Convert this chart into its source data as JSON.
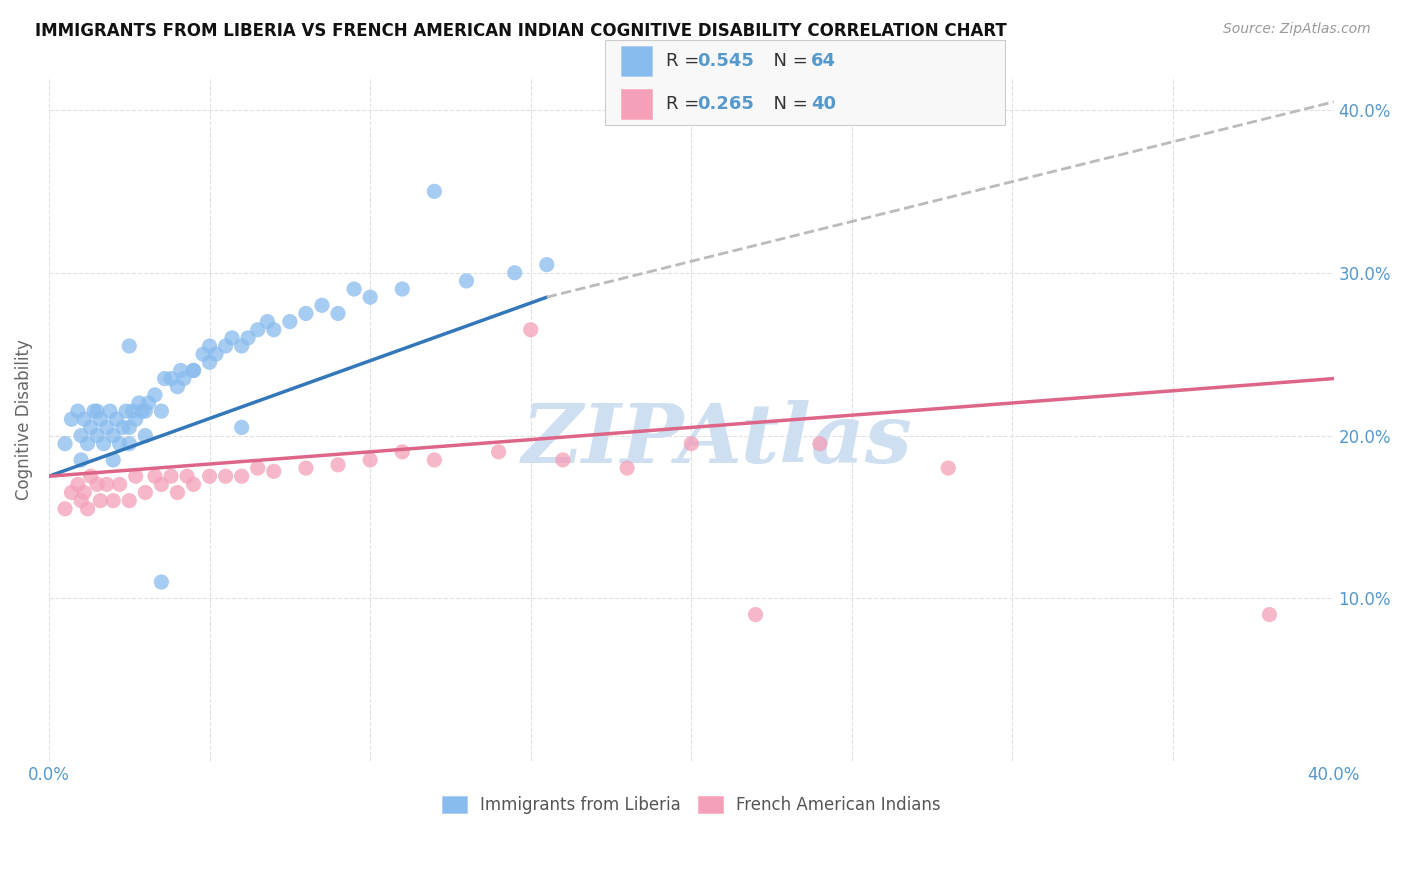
{
  "title": "IMMIGRANTS FROM LIBERIA VS FRENCH AMERICAN INDIAN COGNITIVE DISABILITY CORRELATION CHART",
  "source_text": "Source: ZipAtlas.com",
  "ylabel": "Cognitive Disability",
  "xlim": [
    0.0,
    0.4
  ],
  "ylim": [
    0.0,
    0.42
  ],
  "x_ticks": [
    0.0,
    0.05,
    0.1,
    0.15,
    0.2,
    0.25,
    0.3,
    0.35,
    0.4
  ],
  "y_ticks": [
    0.0,
    0.1,
    0.2,
    0.3,
    0.4
  ],
  "background_color": "#ffffff",
  "grid_color": "#e0e0e0",
  "watermark_text": "ZIPAtlas",
  "watermark_color": "#cddff0",
  "color1": "#88bbee",
  "color2": "#f4a0b8",
  "trend1_color": "#3377bb",
  "trend2_color": "#dd6688",
  "trend_ext_color": "#bbbbbb",
  "label1": "Immigrants from Liberia",
  "label2": "French American Indians",
  "R1": "0.545",
  "N1": "64",
  "R2": "0.265",
  "N2": "40",
  "tick_color": "#5599cc",
  "title_color": "#111111",
  "ylabel_color": "#666666",
  "source_color": "#999999",
  "trend1_x_solid_start": 0.0,
  "trend1_x_solid_end": 0.155,
  "trend1_x_dash_end": 0.4,
  "trend1_y_at_0": 0.175,
  "trend1_y_at_solid_end": 0.285,
  "trend1_y_at_dash_end": 0.405,
  "trend2_x_start": 0.0,
  "trend2_x_end": 0.4,
  "trend2_y_at_0": 0.175,
  "trend2_y_at_end": 0.235,
  "scatter1_x": [
    0.005,
    0.007,
    0.009,
    0.01,
    0.01,
    0.011,
    0.012,
    0.013,
    0.014,
    0.015,
    0.015,
    0.016,
    0.017,
    0.018,
    0.019,
    0.02,
    0.02,
    0.021,
    0.022,
    0.023,
    0.024,
    0.025,
    0.025,
    0.026,
    0.027,
    0.028,
    0.029,
    0.03,
    0.03,
    0.031,
    0.033,
    0.035,
    0.036,
    0.038,
    0.04,
    0.041,
    0.042,
    0.045,
    0.048,
    0.05,
    0.05,
    0.052,
    0.055,
    0.057,
    0.06,
    0.062,
    0.065,
    0.068,
    0.07,
    0.075,
    0.08,
    0.085,
    0.09,
    0.095,
    0.1,
    0.11,
    0.12,
    0.13,
    0.145,
    0.155,
    0.025,
    0.035,
    0.045,
    0.06
  ],
  "scatter1_y": [
    0.195,
    0.21,
    0.215,
    0.185,
    0.2,
    0.21,
    0.195,
    0.205,
    0.215,
    0.2,
    0.215,
    0.21,
    0.195,
    0.205,
    0.215,
    0.185,
    0.2,
    0.21,
    0.195,
    0.205,
    0.215,
    0.195,
    0.205,
    0.215,
    0.21,
    0.22,
    0.215,
    0.2,
    0.215,
    0.22,
    0.225,
    0.215,
    0.235,
    0.235,
    0.23,
    0.24,
    0.235,
    0.24,
    0.25,
    0.245,
    0.255,
    0.25,
    0.255,
    0.26,
    0.255,
    0.26,
    0.265,
    0.27,
    0.265,
    0.27,
    0.275,
    0.28,
    0.275,
    0.29,
    0.285,
    0.29,
    0.35,
    0.295,
    0.3,
    0.305,
    0.255,
    0.11,
    0.24,
    0.205
  ],
  "scatter2_x": [
    0.005,
    0.007,
    0.009,
    0.01,
    0.011,
    0.012,
    0.013,
    0.015,
    0.016,
    0.018,
    0.02,
    0.022,
    0.025,
    0.027,
    0.03,
    0.033,
    0.035,
    0.038,
    0.04,
    0.043,
    0.045,
    0.05,
    0.055,
    0.06,
    0.065,
    0.07,
    0.08,
    0.09,
    0.1,
    0.11,
    0.12,
    0.14,
    0.16,
    0.2,
    0.24,
    0.28,
    0.15,
    0.18,
    0.22,
    0.38
  ],
  "scatter2_y": [
    0.155,
    0.165,
    0.17,
    0.16,
    0.165,
    0.155,
    0.175,
    0.17,
    0.16,
    0.17,
    0.16,
    0.17,
    0.16,
    0.175,
    0.165,
    0.175,
    0.17,
    0.175,
    0.165,
    0.175,
    0.17,
    0.175,
    0.175,
    0.175,
    0.18,
    0.178,
    0.18,
    0.182,
    0.185,
    0.19,
    0.185,
    0.19,
    0.185,
    0.195,
    0.195,
    0.18,
    0.265,
    0.18,
    0.09,
    0.09
  ]
}
